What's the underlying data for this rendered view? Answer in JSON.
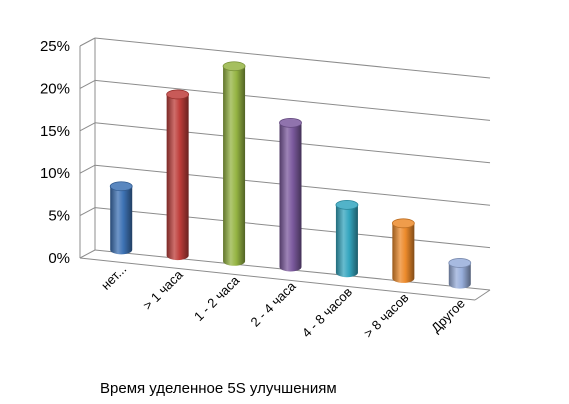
{
  "chart_data": {
    "type": "bar",
    "style": "3d-cylinder",
    "title": "",
    "xlabel": "Время уделенное 5S улучшениям",
    "ylabel": "",
    "ylim": [
      0,
      25
    ],
    "yticks": [
      "0%",
      "5%",
      "10%",
      "15%",
      "20%",
      "25%"
    ],
    "grid": true,
    "legend": "none",
    "categories": [
      "нет...",
      "> 1 часа",
      "1 - 2 часа",
      "2 - 4 часа",
      "4 - 8 часов",
      "> 8 часов",
      "Другое"
    ],
    "values": [
      7.5,
      19,
      23,
      17,
      8,
      6.5,
      2.5
    ],
    "unit": "%",
    "colors": [
      "#3d72b4",
      "#be3d3a",
      "#95b443",
      "#7c5a9e",
      "#34a6bf",
      "#ec8a2b",
      "#98aedb"
    ]
  }
}
